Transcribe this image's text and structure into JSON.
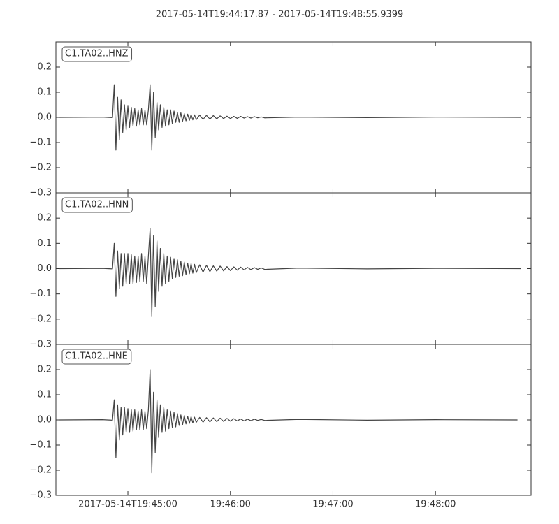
{
  "title": "2017-05-14T19:44:17.87  -  2017-05-14T19:48:55.9399",
  "chart_data": [
    {
      "type": "line",
      "x": [
        "19:44:20",
        "19:44:45",
        "19:44:51",
        "19:44:52",
        "19:44:53",
        "19:44:54",
        "19:44:55",
        "19:44:56",
        "19:44:57",
        "19:44:58",
        "19:44:59",
        "19:45:00",
        "19:45:01",
        "19:45:02",
        "19:45:03",
        "19:45:04",
        "19:45:05",
        "19:45:06",
        "19:45:07",
        "19:45:08",
        "19:45:09",
        "19:45:10",
        "19:45:11",
        "19:45:12",
        "19:45:13",
        "19:45:14",
        "19:45:15",
        "19:45:16",
        "19:45:17",
        "19:45:18",
        "19:45:19",
        "19:45:20",
        "19:45:21",
        "19:45:22",
        "19:45:23",
        "19:45:24",
        "19:45:25",
        "19:45:26",
        "19:45:27",
        "19:45:28",
        "19:45:29",
        "19:45:30",
        "19:45:31",
        "19:45:32",
        "19:45:33",
        "19:45:34",
        "19:45:35",
        "19:45:36",
        "19:45:37",
        "19:45:38",
        "19:45:39",
        "19:45:40",
        "19:45:42",
        "19:45:44",
        "19:45:46",
        "19:45:48",
        "19:45:50",
        "19:45:52",
        "19:45:54",
        "19:45:56",
        "19:45:58",
        "19:46:00",
        "19:46:02",
        "19:46:04",
        "19:46:06",
        "19:46:08",
        "19:46:10",
        "19:46:12",
        "19:46:14",
        "19:46:16",
        "19:46:18",
        "19:46:20",
        "19:46:40",
        "19:47:20",
        "19:48:00",
        "19:48:50"
      ],
      "series": [
        {
          "name": "C1.TA02..HNZ",
          "color": "#444444",
          "values": [
            0,
            0.001,
            -0.001,
            0.13,
            -0.13,
            0.08,
            -0.09,
            0.07,
            -0.06,
            0.05,
            -0.05,
            0.045,
            -0.04,
            0.04,
            -0.035,
            0.035,
            -0.035,
            0.03,
            -0.03,
            0.035,
            -0.03,
            0.03,
            -0.03,
            0.03,
            0.13,
            -0.13,
            0.1,
            -0.08,
            0.06,
            -0.05,
            0.05,
            -0.04,
            0.04,
            -0.035,
            0.03,
            -0.03,
            0.03,
            -0.025,
            0.025,
            -0.02,
            0.02,
            -0.02,
            0.018,
            -0.016,
            0.015,
            -0.014,
            0.013,
            -0.012,
            0.011,
            -0.01,
            0.01,
            -0.009,
            0.009,
            -0.008,
            0.008,
            -0.007,
            0.007,
            -0.006,
            0.006,
            -0.005,
            0.005,
            -0.005,
            0.004,
            -0.004,
            0.004,
            -0.003,
            0.003,
            -0.003,
            0.003,
            -0.002,
            0.002,
            -0.002,
            0.001,
            -0.001,
            0.001,
            0
          ]
        }
      ],
      "ylim": [
        -0.3,
        0.3
      ],
      "yticks": [
        {
          "value": -0.3,
          "label": "−0.3"
        },
        {
          "value": -0.2,
          "label": "−0.2"
        },
        {
          "value": -0.1,
          "label": "−0.1"
        },
        {
          "value": 0,
          "label": "0.0"
        },
        0.1,
        0.2
      ]
    },
    {
      "type": "line",
      "x": [
        "19:44:20",
        "19:44:45",
        "19:44:51",
        "19:44:52",
        "19:44:53",
        "19:44:54",
        "19:44:55",
        "19:44:56",
        "19:44:57",
        "19:44:58",
        "19:44:59",
        "19:45:00",
        "19:45:01",
        "19:45:02",
        "19:45:03",
        "19:45:04",
        "19:45:05",
        "19:45:06",
        "19:45:07",
        "19:45:08",
        "19:45:09",
        "19:45:10",
        "19:45:11",
        "19:45:12",
        "19:45:13",
        "19:45:14",
        "19:45:15",
        "19:45:16",
        "19:45:17",
        "19:45:18",
        "19:45:19",
        "19:45:20",
        "19:45:21",
        "19:45:22",
        "19:45:23",
        "19:45:24",
        "19:45:25",
        "19:45:26",
        "19:45:27",
        "19:45:28",
        "19:45:29",
        "19:45:30",
        "19:45:31",
        "19:45:32",
        "19:45:33",
        "19:45:34",
        "19:45:35",
        "19:45:36",
        "19:45:37",
        "19:45:38",
        "19:45:39",
        "19:45:40",
        "19:45:42",
        "19:45:44",
        "19:45:46",
        "19:45:48",
        "19:45:50",
        "19:45:52",
        "19:45:54",
        "19:45:56",
        "19:45:58",
        "19:46:00",
        "19:46:02",
        "19:46:04",
        "19:46:06",
        "19:46:08",
        "19:46:10",
        "19:46:12",
        "19:46:14",
        "19:46:16",
        "19:46:18",
        "19:46:20",
        "19:46:40",
        "19:47:20",
        "19:48:00",
        "19:48:50"
      ],
      "series": [
        {
          "name": "C1.TA02..HNN",
          "color": "#444444",
          "values": [
            0,
            0.001,
            -0.001,
            0.1,
            -0.11,
            0.07,
            -0.08,
            0.06,
            -0.07,
            0.06,
            -0.06,
            0.06,
            -0.06,
            0.055,
            -0.06,
            0.05,
            -0.055,
            0.05,
            -0.05,
            0.06,
            -0.05,
            0.05,
            -0.06,
            0.05,
            0.16,
            -0.19,
            0.13,
            -0.15,
            0.11,
            -0.09,
            0.08,
            -0.07,
            0.06,
            -0.06,
            0.05,
            -0.05,
            0.045,
            -0.04,
            0.04,
            -0.035,
            0.035,
            -0.03,
            0.03,
            -0.028,
            0.026,
            -0.024,
            0.022,
            -0.02,
            0.02,
            -0.018,
            0.017,
            -0.016,
            0.015,
            -0.014,
            0.013,
            -0.012,
            0.011,
            -0.01,
            0.01,
            -0.009,
            0.008,
            -0.008,
            0.007,
            -0.006,
            0.006,
            -0.005,
            0.005,
            -0.004,
            0.004,
            -0.003,
            0.003,
            -0.003,
            0.002,
            -0.001,
            0.001,
            0
          ]
        }
      ],
      "ylim": [
        -0.3,
        0.3
      ],
      "yticks": [
        {
          "value": -0.3,
          "label": "−0.3"
        },
        {
          "value": -0.2,
          "label": "−0.2"
        },
        {
          "value": -0.1,
          "label": "−0.1"
        },
        {
          "value": 0,
          "label": "0.0"
        },
        0.1,
        0.2
      ]
    },
    {
      "type": "line",
      "x": [
        "19:44:20",
        "19:44:45",
        "19:44:51",
        "19:44:52",
        "19:44:53",
        "19:44:54",
        "19:44:55",
        "19:44:56",
        "19:44:57",
        "19:44:58",
        "19:44:59",
        "19:45:00",
        "19:45:01",
        "19:45:02",
        "19:45:03",
        "19:45:04",
        "19:45:05",
        "19:45:06",
        "19:45:07",
        "19:45:08",
        "19:45:09",
        "19:45:10",
        "19:45:11",
        "19:45:12",
        "19:45:13",
        "19:45:14",
        "19:45:15",
        "19:45:16",
        "19:45:17",
        "19:45:18",
        "19:45:19",
        "19:45:20",
        "19:45:21",
        "19:45:22",
        "19:45:23",
        "19:45:24",
        "19:45:25",
        "19:45:26",
        "19:45:27",
        "19:45:28",
        "19:45:29",
        "19:45:30",
        "19:45:31",
        "19:45:32",
        "19:45:33",
        "19:45:34",
        "19:45:35",
        "19:45:36",
        "19:45:37",
        "19:45:38",
        "19:45:39",
        "19:45:40",
        "19:45:42",
        "19:45:44",
        "19:45:46",
        "19:45:48",
        "19:45:50",
        "19:45:52",
        "19:45:54",
        "19:45:56",
        "19:45:58",
        "19:46:00",
        "19:46:02",
        "19:46:04",
        "19:46:06",
        "19:46:08",
        "19:46:10",
        "19:46:12",
        "19:46:14",
        "19:46:16",
        "19:46:18",
        "19:46:20",
        "19:46:40",
        "19:47:20",
        "19:48:00",
        "19:48:48"
      ],
      "series": [
        {
          "name": "C1.TA02..HNE",
          "color": "#444444",
          "values": [
            0,
            0.001,
            -0.001,
            0.08,
            -0.15,
            0.06,
            -0.08,
            0.05,
            -0.06,
            0.05,
            -0.05,
            0.045,
            -0.05,
            0.04,
            -0.045,
            0.04,
            -0.04,
            0.035,
            -0.04,
            0.04,
            -0.04,
            0.035,
            -0.035,
            0.04,
            0.2,
            -0.21,
            0.11,
            -0.13,
            0.08,
            -0.07,
            0.06,
            -0.05,
            0.05,
            -0.045,
            0.04,
            -0.035,
            0.035,
            -0.03,
            0.03,
            -0.028,
            0.025,
            -0.022,
            0.02,
            -0.02,
            0.018,
            -0.016,
            0.015,
            -0.014,
            0.013,
            -0.012,
            0.011,
            -0.01,
            0.01,
            -0.009,
            0.009,
            -0.008,
            0.008,
            -0.007,
            0.007,
            -0.006,
            0.006,
            -0.005,
            0.005,
            -0.004,
            0.004,
            -0.004,
            0.003,
            -0.003,
            0.003,
            -0.002,
            0.002,
            -0.002,
            0.002,
            -0.001,
            0.001,
            0
          ]
        }
      ],
      "ylim": [
        -0.3,
        0.3
      ],
      "yticks": [
        {
          "value": -0.3,
          "label": "−0.3"
        },
        {
          "value": -0.2,
          "label": "−0.2"
        },
        {
          "value": -0.1,
          "label": "−0.1"
        },
        {
          "value": 0,
          "label": "0.0"
        },
        0.1,
        0.2
      ],
      "xlim": [
        "19:44:17.87",
        "19:48:55.9399"
      ],
      "xticks": [
        {
          "value": "19:45:00",
          "label": "2017-05-14T19:45:00"
        },
        "19:46:00",
        "19:47:00",
        "19:48:00"
      ]
    }
  ]
}
